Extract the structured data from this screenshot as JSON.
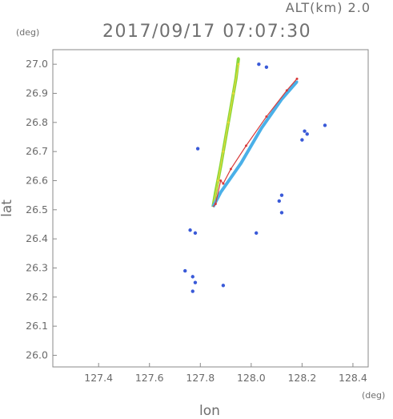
{
  "header": {
    "altitude": "ALT(km) 2.0",
    "timestamp": "2017/09/17 07:07:30"
  },
  "axes": {
    "y_unit": "(deg)",
    "x_unit": "(deg)",
    "y_label": "lat",
    "x_label": "lon"
  },
  "colors": {
    "frame": "#8a8a8a",
    "tick_text": "#6a6a6a",
    "echo_blue": "#3a5ad8",
    "echo_cyan": "#4ab0e8",
    "echo_green": "#8ad83a",
    "echo_yellow": "#e8d83a",
    "echo_red": "#d83a3a"
  },
  "chart_data": {
    "type": "scatter",
    "title": "2017/09/17 07:07:30",
    "xlabel": "lon",
    "ylabel": "lat",
    "xlim": [
      127.22,
      128.46
    ],
    "ylim": [
      25.96,
      27.05
    ],
    "xticks": [
      "127.4",
      "127.6",
      "127.8",
      "128.0",
      "128.2",
      "128.4"
    ],
    "yticks": [
      "26.0",
      "26.1",
      "26.2",
      "26.3",
      "26.4",
      "26.5",
      "26.6",
      "26.7",
      "26.8",
      "26.9",
      "27.0"
    ],
    "grid": false,
    "radar_origin": [
      127.85,
      26.51
    ],
    "series": [
      {
        "color": "#8ad83a",
        "points": [
          [
            127.86,
            26.56
          ],
          [
            127.88,
            26.65
          ],
          [
            127.9,
            26.75
          ],
          [
            127.92,
            26.85
          ],
          [
            127.94,
            26.95
          ],
          [
            127.95,
            27.02
          ]
        ]
      },
      {
        "color": "#e8d83a",
        "points": [
          [
            127.87,
            26.6
          ],
          [
            127.89,
            26.7
          ],
          [
            127.91,
            26.8
          ],
          [
            127.93,
            26.9
          ],
          [
            127.95,
            27.0
          ]
        ]
      },
      {
        "color": "#4ab0e8",
        "points": [
          [
            127.88,
            26.56
          ],
          [
            127.92,
            26.61
          ],
          [
            127.96,
            26.66
          ],
          [
            128.0,
            26.72
          ],
          [
            128.04,
            26.78
          ],
          [
            128.08,
            26.83
          ],
          [
            128.12,
            26.88
          ],
          [
            128.16,
            26.92
          ],
          [
            128.18,
            26.94
          ]
        ]
      },
      {
        "color": "#d83a3a",
        "points": [
          [
            127.86,
            26.52
          ],
          [
            127.88,
            26.6
          ],
          [
            127.89,
            26.59
          ],
          [
            127.92,
            26.64
          ],
          [
            127.98,
            26.72
          ],
          [
            128.06,
            26.82
          ],
          [
            128.14,
            26.91
          ],
          [
            128.18,
            26.95
          ]
        ]
      },
      {
        "color": "#3a5ad8",
        "points": [
          [
            127.79,
            26.71
          ],
          [
            128.22,
            26.76
          ],
          [
            128.21,
            26.77
          ],
          [
            128.2,
            26.74
          ],
          [
            128.29,
            26.79
          ],
          [
            128.11,
            26.53
          ],
          [
            128.12,
            26.49
          ],
          [
            128.12,
            26.55
          ],
          [
            127.76,
            26.43
          ],
          [
            127.78,
            26.42
          ],
          [
            127.74,
            26.29
          ],
          [
            127.77,
            26.27
          ],
          [
            127.78,
            26.25
          ],
          [
            127.77,
            26.22
          ],
          [
            127.89,
            26.24
          ],
          [
            128.02,
            26.42
          ],
          [
            128.06,
            26.99
          ],
          [
            128.03,
            27.0
          ]
        ]
      }
    ]
  }
}
